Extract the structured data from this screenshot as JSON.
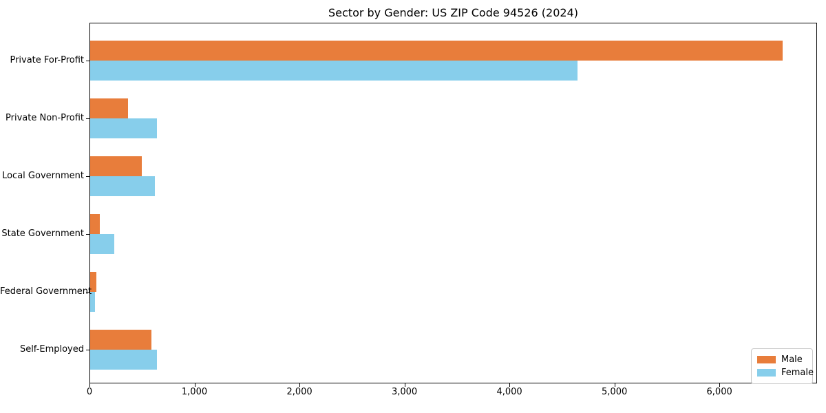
{
  "title": "Sector by Gender: US ZIP Code 94526 (2024)",
  "chart_data": {
    "type": "bar",
    "orientation": "horizontal",
    "title": "Sector by Gender: US ZIP Code 94526 (2024)",
    "categories": [
      "Private For-Profit",
      "Private Non-Profit",
      "Local Government",
      "State Government",
      "Federal Government",
      "Self-Employed"
    ],
    "series": [
      {
        "name": "Male",
        "color": "#e87d3b",
        "values": [
          6600,
          370,
          500,
          100,
          65,
          590
        ]
      },
      {
        "name": "Female",
        "color": "#87ceeb",
        "values": [
          4650,
          645,
          620,
          235,
          50,
          640
        ]
      }
    ],
    "xlabel": "",
    "ylabel": "",
    "xlim": [
      0,
      6930
    ],
    "x_ticks": [
      0,
      1000,
      2000,
      3000,
      4000,
      5000,
      6000
    ],
    "x_tick_labels": [
      "0",
      "1,000",
      "2,000",
      "3,000",
      "4,000",
      "5,000",
      "6,000"
    ],
    "grid": false,
    "legend": {
      "position": "lower right",
      "entries": [
        "Male",
        "Female"
      ]
    },
    "colors": {
      "male": "#e87d3b",
      "female": "#87ceeb",
      "spine": "#000000",
      "background": "#ffffff"
    }
  }
}
